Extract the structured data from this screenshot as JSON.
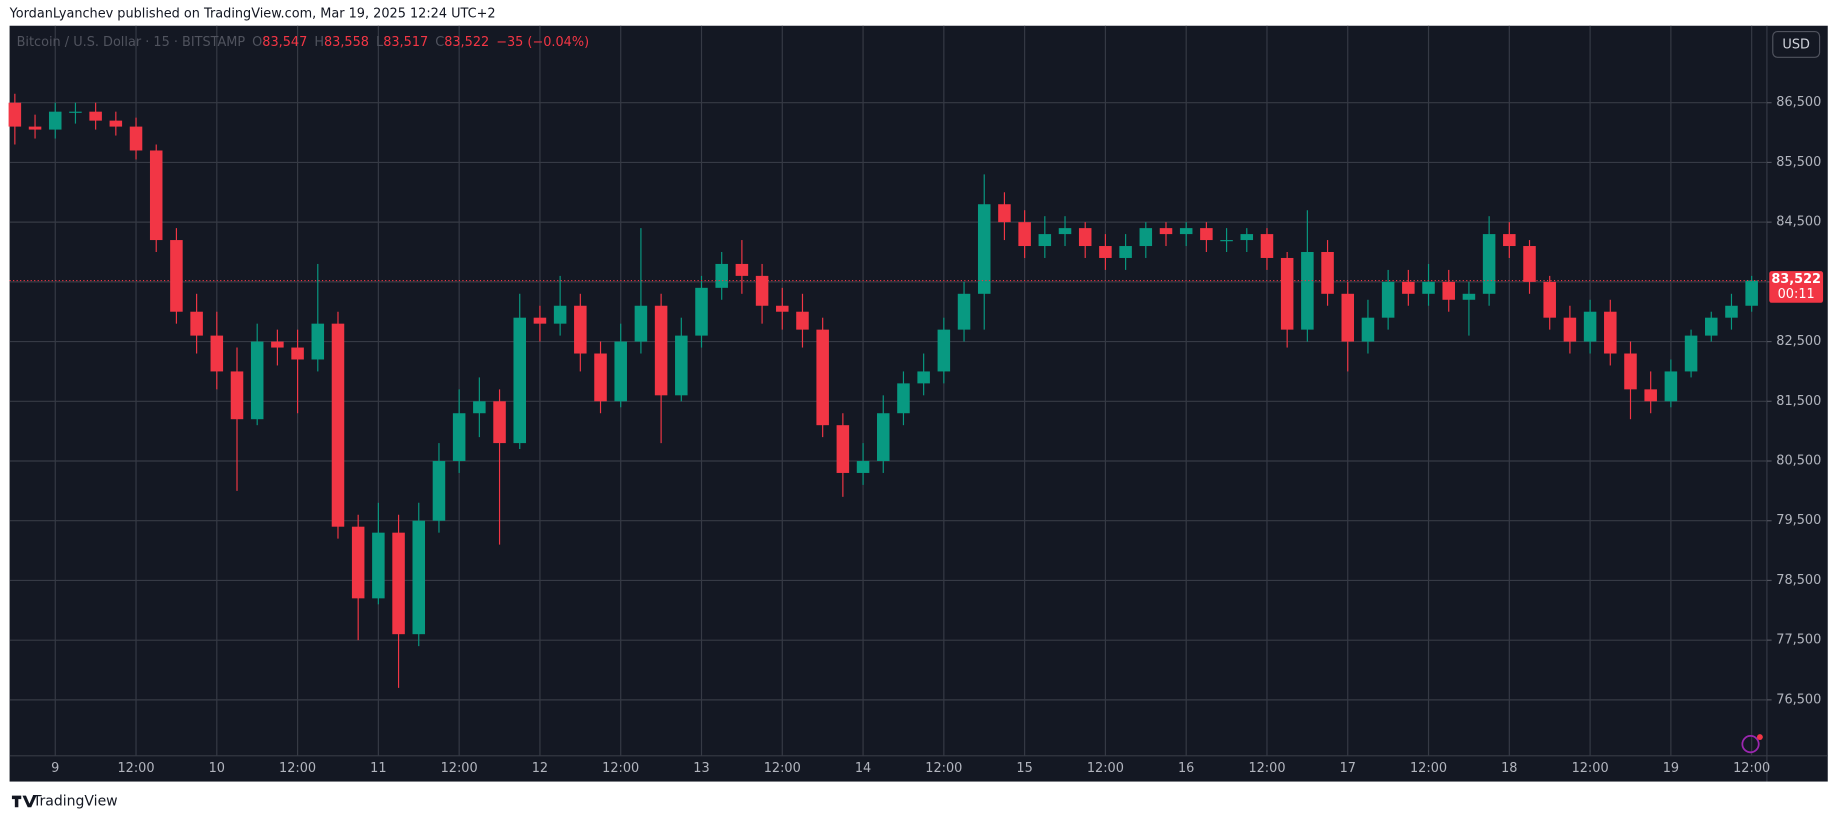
{
  "header": "YordanLyanchev published on TradingView.com, Mar 19, 2025 12:24 UTC+2",
  "footer": "TradingView",
  "chart_data": {
    "type": "candlestick",
    "legend": {
      "symbol": "Bitcoin / U.S. Dollar · 15 · BITSTAMP",
      "items": [
        {
          "key": "O",
          "value": "83,547"
        },
        {
          "key": "H",
          "value": "83,558"
        },
        {
          "key": "L",
          "value": "83,517"
        },
        {
          "key": "C",
          "value": "83,522"
        }
      ],
      "change": "−35 (−0.04%)"
    },
    "currency": "USD",
    "last_price": {
      "value": 83522,
      "label": "83,522"
    },
    "countdown": "00:11",
    "up_color": "#089981",
    "down_color": "#f23645",
    "grid": true,
    "x": [
      "2025-03-08 18:00",
      "2025-03-08 21:00",
      "2025-03-09 00:00",
      "2025-03-09 03:00",
      "2025-03-09 06:00",
      "2025-03-09 09:00",
      "2025-03-09 12:00",
      "2025-03-09 15:00",
      "2025-03-09 18:00",
      "2025-03-09 21:00",
      "2025-03-10 00:00",
      "2025-03-10 03:00",
      "2025-03-10 06:00",
      "2025-03-10 09:00",
      "2025-03-10 12:00",
      "2025-03-10 15:00",
      "2025-03-10 18:00",
      "2025-03-10 21:00",
      "2025-03-11 00:00",
      "2025-03-11 03:00",
      "2025-03-11 06:00",
      "2025-03-11 09:00",
      "2025-03-11 12:00",
      "2025-03-11 15:00",
      "2025-03-11 18:00",
      "2025-03-11 21:00",
      "2025-03-12 00:00",
      "2025-03-12 03:00",
      "2025-03-12 06:00",
      "2025-03-12 09:00",
      "2025-03-12 12:00",
      "2025-03-12 15:00",
      "2025-03-12 18:00",
      "2025-03-12 21:00",
      "2025-03-13 00:00",
      "2025-03-13 03:00",
      "2025-03-13 06:00",
      "2025-03-13 09:00",
      "2025-03-13 12:00",
      "2025-03-13 15:00",
      "2025-03-13 18:00",
      "2025-03-13 21:00",
      "2025-03-14 00:00",
      "2025-03-14 03:00",
      "2025-03-14 06:00",
      "2025-03-14 09:00",
      "2025-03-14 12:00",
      "2025-03-14 15:00",
      "2025-03-14 18:00",
      "2025-03-14 21:00",
      "2025-03-15 00:00",
      "2025-03-15 03:00",
      "2025-03-15 06:00",
      "2025-03-15 09:00",
      "2025-03-15 12:00",
      "2025-03-15 15:00",
      "2025-03-15 18:00",
      "2025-03-15 21:00",
      "2025-03-16 00:00",
      "2025-03-16 03:00",
      "2025-03-16 06:00",
      "2025-03-16 09:00",
      "2025-03-16 12:00",
      "2025-03-16 15:00",
      "2025-03-16 18:00",
      "2025-03-16 21:00",
      "2025-03-17 00:00",
      "2025-03-17 03:00",
      "2025-03-17 06:00",
      "2025-03-17 09:00",
      "2025-03-17 12:00",
      "2025-03-17 15:00",
      "2025-03-17 18:00",
      "2025-03-17 21:00",
      "2025-03-18 00:00",
      "2025-03-18 03:00",
      "2025-03-18 06:00",
      "2025-03-18 09:00",
      "2025-03-18 12:00",
      "2025-03-18 15:00",
      "2025-03-18 18:00",
      "2025-03-18 21:00",
      "2025-03-19 00:00",
      "2025-03-19 03:00",
      "2025-03-19 06:00",
      "2025-03-19 09:00",
      "2025-03-19 12:00"
    ],
    "open": [
      86500,
      86100,
      86050,
      86350,
      86350,
      86200,
      86100,
      85700,
      84200,
      83000,
      82600,
      82000,
      81200,
      82500,
      82400,
      82200,
      82800,
      79400,
      78200,
      79300,
      77600,
      79500,
      80500,
      81300,
      81500,
      80800,
      82900,
      82800,
      83100,
      82300,
      81500,
      82500,
      83100,
      81600,
      82600,
      83400,
      83800,
      83600,
      83100,
      83000,
      82700,
      81100,
      80300,
      80500,
      81300,
      81800,
      82000,
      82700,
      83300,
      84800,
      84500,
      84100,
      84300,
      84400,
      84100,
      83900,
      84100,
      84400,
      84300,
      84400,
      84200,
      84200,
      84300,
      83900,
      82700,
      84000,
      83300,
      82500,
      82900,
      83500,
      83300,
      83500,
      83200,
      83300,
      84300,
      84100,
      83500,
      82900,
      82500,
      83000,
      82300,
      81700,
      81500,
      82000,
      82600,
      82900,
      83100
    ],
    "high": [
      86650,
      86300,
      86500,
      86500,
      86500,
      86350,
      86250,
      85800,
      84400,
      83300,
      83000,
      82400,
      82800,
      82700,
      82700,
      83800,
      83000,
      79600,
      79800,
      79600,
      79800,
      80800,
      81700,
      81900,
      81700,
      83300,
      83100,
      83600,
      83300,
      82500,
      82800,
      84400,
      83300,
      82900,
      83600,
      84000,
      84200,
      83800,
      83400,
      83300,
      82900,
      81300,
      80800,
      81600,
      82000,
      82300,
      82900,
      83500,
      85300,
      85000,
      84700,
      84600,
      84600,
      84500,
      84300,
      84300,
      84500,
      84500,
      84500,
      84500,
      84400,
      84400,
      84400,
      84000,
      84700,
      84200,
      83500,
      83200,
      83700,
      83700,
      83800,
      83700,
      83500,
      84600,
      84500,
      84200,
      83600,
      83100,
      83200,
      83200,
      82500,
      82000,
      82200,
      82700,
      83000,
      83300,
      83600
    ],
    "low": [
      85800,
      85900,
      85900,
      86150,
      86050,
      85950,
      85550,
      84000,
      82800,
      82300,
      81700,
      80000,
      81100,
      82100,
      81300,
      82000,
      79200,
      77500,
      78100,
      76700,
      77400,
      79300,
      80300,
      80900,
      79100,
      80700,
      82500,
      82600,
      82000,
      81300,
      81400,
      82300,
      80800,
      81500,
      82400,
      83200,
      83300,
      82800,
      82700,
      82400,
      80900,
      79900,
      80100,
      80300,
      81100,
      81600,
      81800,
      82500,
      82700,
      84200,
      83900,
      83900,
      84100,
      83900,
      83700,
      83700,
      83900,
      84100,
      84100,
      84000,
      84000,
      84000,
      83700,
      82400,
      82500,
      83100,
      82000,
      82300,
      82700,
      83100,
      83100,
      83000,
      82600,
      83100,
      83900,
      83300,
      82700,
      82300,
      82300,
      82100,
      81200,
      81300,
      81400,
      81900,
      82500,
      82700,
      83000
    ],
    "close": [
      86100,
      86050,
      86350,
      86350,
      86200,
      86100,
      85700,
      84200,
      83000,
      82600,
      82000,
      81200,
      82500,
      82400,
      82200,
      82800,
      79400,
      78200,
      79300,
      77600,
      79500,
      80500,
      81300,
      81500,
      80800,
      82900,
      82800,
      83100,
      82300,
      81500,
      82500,
      83100,
      81600,
      82600,
      83400,
      83800,
      83600,
      83100,
      83000,
      82700,
      81100,
      80300,
      80500,
      81300,
      81800,
      82000,
      82700,
      83300,
      84800,
      84500,
      84100,
      84300,
      84400,
      84100,
      83900,
      84100,
      84400,
      84300,
      84400,
      84200,
      84200,
      84300,
      83900,
      82700,
      84000,
      83300,
      82500,
      82900,
      83500,
      83300,
      83500,
      83200,
      83300,
      84300,
      84100,
      83500,
      82900,
      82500,
      83000,
      82300,
      81700,
      81500,
      82000,
      82600,
      82900,
      83100,
      83522
    ],
    "xlim": [
      "2025-03-08 17:13",
      "2025-03-19 14:16"
    ],
    "xticks": [
      {
        "value": "2025-03-09 00:00",
        "label": "9"
      },
      {
        "value": "2025-03-09 12:00",
        "label": "12:00"
      },
      {
        "value": "2025-03-10 00:00",
        "label": "10"
      },
      {
        "value": "2025-03-10 12:00",
        "label": "12:00"
      },
      {
        "value": "2025-03-11 00:00",
        "label": "11"
      },
      {
        "value": "2025-03-11 12:00",
        "label": "12:00"
      },
      {
        "value": "2025-03-12 00:00",
        "label": "12"
      },
      {
        "value": "2025-03-12 12:00",
        "label": "12:00"
      },
      {
        "value": "2025-03-13 00:00",
        "label": "13"
      },
      {
        "value": "2025-03-13 12:00",
        "label": "12:00"
      },
      {
        "value": "2025-03-14 00:00",
        "label": "14"
      },
      {
        "value": "2025-03-14 12:00",
        "label": "12:00"
      },
      {
        "value": "2025-03-15 00:00",
        "label": "15"
      },
      {
        "value": "2025-03-15 12:00",
        "label": "12:00"
      },
      {
        "value": "2025-03-16 00:00",
        "label": "16"
      },
      {
        "value": "2025-03-16 12:00",
        "label": "12:00"
      },
      {
        "value": "2025-03-17 00:00",
        "label": "17"
      },
      {
        "value": "2025-03-17 12:00",
        "label": "12:00"
      },
      {
        "value": "2025-03-18 00:00",
        "label": "18"
      },
      {
        "value": "2025-03-18 12:00",
        "label": "12:00"
      },
      {
        "value": "2025-03-19 00:00",
        "label": "19"
      },
      {
        "value": "2025-03-19 12:00",
        "label": "12:00"
      }
    ],
    "ylim": [
      75563,
      87789
    ],
    "yticks": [
      {
        "value": 76500,
        "label": "76,500"
      },
      {
        "value": 77500,
        "label": "77,500"
      },
      {
        "value": 78500,
        "label": "78,500"
      },
      {
        "value": 79500,
        "label": "79,500"
      },
      {
        "value": 80500,
        "label": "80,500"
      },
      {
        "value": 81500,
        "label": "81,500"
      },
      {
        "value": 82500,
        "label": "82,500"
      },
      {
        "value": 83500,
        "label": "83,500"
      },
      {
        "value": 84500,
        "label": "84,500"
      },
      {
        "value": 85500,
        "label": "85,500"
      },
      {
        "value": 86500,
        "label": "86,500"
      }
    ]
  }
}
